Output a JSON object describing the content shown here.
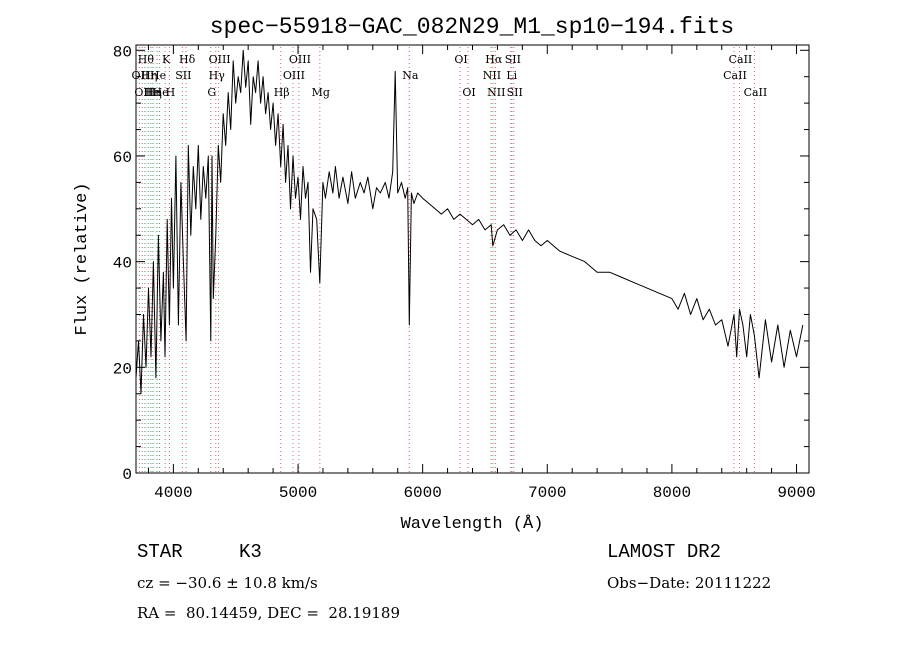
{
  "chart_data": {
    "type": "line",
    "title": "spec−55918−GAC_082N29_M1_sp10−194.fits",
    "xlabel": "Wavelength (Å)",
    "ylabel": "Flux (relative)",
    "xlim": [
      3700,
      9100
    ],
    "ylim": [
      0,
      81
    ],
    "x_ticks": [
      4000,
      5000,
      6000,
      7000,
      8000,
      9000
    ],
    "y_ticks": [
      0,
      20,
      40,
      60,
      80
    ],
    "grid": false,
    "line_color": "#000000",
    "marker_color": "#e06060",
    "series": [
      {
        "x": [
          3700,
          3720,
          3740,
          3760,
          3780,
          3800,
          3820,
          3840,
          3860,
          3880,
          3900,
          3920,
          3933,
          3950,
          3968,
          3985,
          4000,
          4020,
          4040,
          4060,
          4080,
          4102,
          4120,
          4140,
          4160,
          4180,
          4200,
          4220,
          4240,
          4260,
          4280,
          4300,
          4310,
          4320,
          4340,
          4360,
          4380,
          4400,
          4420,
          4440,
          4460,
          4480,
          4500,
          4520,
          4540,
          4560,
          4580,
          4600,
          4620,
          4640,
          4660,
          4680,
          4700,
          4720,
          4740,
          4760,
          4780,
          4800,
          4820,
          4840,
          4861,
          4880,
          4900,
          4920,
          4940,
          4960,
          4980,
          5000,
          5020,
          5040,
          5060,
          5080,
          5100,
          5120,
          5150,
          5175,
          5200,
          5220,
          5250,
          5280,
          5300,
          5330,
          5360,
          5400,
          5430,
          5460,
          5500,
          5530,
          5560,
          5600,
          5630,
          5660,
          5700,
          5730,
          5760,
          5780,
          5800,
          5830,
          5860,
          5880,
          5893,
          5910,
          5930,
          5960,
          6000,
          6050,
          6100,
          6150,
          6200,
          6250,
          6300,
          6350,
          6400,
          6450,
          6500,
          6550,
          6563,
          6600,
          6650,
          6700,
          6750,
          6800,
          6850,
          6900,
          6950,
          7000,
          7100,
          7200,
          7300,
          7400,
          7500,
          7600,
          7700,
          7800,
          7900,
          8000,
          8050,
          8100,
          8150,
          8200,
          8250,
          8300,
          8350,
          8400,
          8450,
          8498,
          8520,
          8542,
          8570,
          8600,
          8630,
          8662,
          8700,
          8750,
          8800,
          8850,
          8900,
          8950,
          9000,
          9050
        ],
        "y": [
          18,
          25,
          15,
          30,
          20,
          35,
          22,
          40,
          18,
          45,
          25,
          38,
          22,
          48,
          28,
          52,
          35,
          60,
          28,
          55,
          40,
          25,
          62,
          45,
          58,
          50,
          62,
          48,
          58,
          52,
          60,
          25,
          60,
          33,
          45,
          62,
          55,
          68,
          62,
          72,
          65,
          78,
          70,
          75,
          72,
          80,
          73,
          78,
          66,
          75,
          72,
          78,
          70,
          75,
          68,
          72,
          65,
          70,
          62,
          68,
          58,
          66,
          55,
          62,
          50,
          60,
          52,
          56,
          48,
          58,
          52,
          55,
          38,
          50,
          48,
          36,
          55,
          52,
          57,
          53,
          58,
          52,
          56,
          51,
          57,
          52,
          55,
          53,
          56,
          50,
          54,
          53,
          55,
          52,
          57,
          76,
          53,
          55,
          52,
          54,
          28,
          53,
          51,
          53,
          52,
          51,
          50,
          49,
          50,
          48,
          49,
          48,
          47,
          48,
          46,
          47,
          43,
          46,
          47,
          45,
          46,
          44,
          46,
          44,
          43,
          44,
          42,
          41,
          40,
          38,
          38,
          37,
          36,
          35,
          34,
          33,
          31,
          34,
          30,
          33,
          29,
          31,
          28,
          29,
          24,
          30,
          22,
          31,
          28,
          22,
          30,
          26,
          18,
          29,
          21,
          28,
          20,
          27,
          22,
          28
        ]
      }
    ],
    "line_markers": [
      {
        "wavelength": 3727,
        "row": 2,
        "label": "OII"
      },
      {
        "wavelength": 3750,
        "row": 3,
        "label": "OII"
      },
      {
        "wavelength": 3771,
        "row": 1,
        "label": "Hθ"
      },
      {
        "wavelength": 3798,
        "row": 2,
        "label": "Hη"
      },
      {
        "wavelength": 3820,
        "row": 3,
        "label": "He"
      },
      {
        "wavelength": 3835,
        "row": 3,
        "label": "Hη"
      },
      {
        "wavelength": 3869,
        "row": 2,
        "label": "He"
      },
      {
        "wavelength": 3889,
        "row": 3,
        "label": "He"
      },
      {
        "wavelength": 3934,
        "row": 1,
        "label": "K"
      },
      {
        "wavelength": 3968,
        "row": 3,
        "label": "H"
      },
      {
        "wavelength": 4072,
        "row": 2,
        "label": "SII"
      },
      {
        "wavelength": 4102,
        "row": 1,
        "label": "Hδ"
      },
      {
        "wavelength": 4300,
        "row": 3,
        "label": "G"
      },
      {
        "wavelength": 4340,
        "row": 2,
        "label": "Hγ"
      },
      {
        "wavelength": 4363,
        "row": 1,
        "label": "OIII"
      },
      {
        "wavelength": 4861,
        "row": 3,
        "label": "Hβ"
      },
      {
        "wavelength": 4959,
        "row": 2,
        "label": "OIII"
      },
      {
        "wavelength": 5007,
        "row": 1,
        "label": "OIII"
      },
      {
        "wavelength": 5175,
        "row": 3,
        "label": "Mg"
      },
      {
        "wavelength": 5893,
        "row": 2,
        "label": "Na"
      },
      {
        "wavelength": 6300,
        "row": 1,
        "label": "OI"
      },
      {
        "wavelength": 6364,
        "row": 3,
        "label": "OI"
      },
      {
        "wavelength": 6548,
        "row": 2,
        "label": "NII"
      },
      {
        "wavelength": 6563,
        "row": 1,
        "label": "Hα"
      },
      {
        "wavelength": 6583,
        "row": 3,
        "label": "NII"
      },
      {
        "wavelength": 6707,
        "row": 2,
        "label": "Li"
      },
      {
        "wavelength": 6716,
        "row": 1,
        "label": "SII"
      },
      {
        "wavelength": 6731,
        "row": 3,
        "label": "SII"
      },
      {
        "wavelength": 8498,
        "row": 2,
        "label": "CaII"
      },
      {
        "wavelength": 8542,
        "row": 1,
        "label": "CaII"
      },
      {
        "wavelength": 8662,
        "row": 3,
        "label": "CaII"
      }
    ]
  },
  "info": {
    "object_class": "STAR",
    "subclass": "K3",
    "survey": "LAMOST DR2",
    "redshift": "cz = −30.6 ± 10.8 km/s",
    "obs_date": "Obs−Date: 20111222",
    "coords": "RA =  80.14459, DEC =  28.19189"
  }
}
